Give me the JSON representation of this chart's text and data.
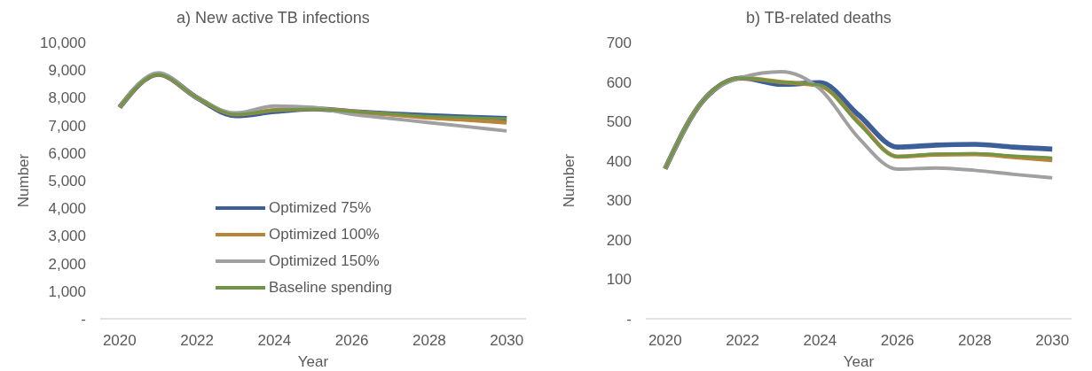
{
  "chart_data": [
    {
      "type": "line",
      "title": "a) New active TB infections",
      "xlabel": "Year",
      "ylabel": "Number",
      "x": [
        2020,
        2021,
        2022,
        2023,
        2024,
        2025,
        2026,
        2027,
        2028,
        2029,
        2030
      ],
      "xlim": [
        2019.5,
        2030.5
      ],
      "xticks": [
        2020,
        2022,
        2024,
        2026,
        2028,
        2030
      ],
      "ylim": [
        0,
        10000
      ],
      "yticks": [
        {
          "value": 0,
          "label": "-"
        },
        {
          "value": 1000,
          "label": "1,000"
        },
        {
          "value": 2000,
          "label": "2,000"
        },
        {
          "value": 3000,
          "label": "3,000"
        },
        {
          "value": 4000,
          "label": "4,000"
        },
        {
          "value": 5000,
          "label": "5,000"
        },
        {
          "value": 6000,
          "label": "6,000"
        },
        {
          "value": 7000,
          "label": "7,000"
        },
        {
          "value": 8000,
          "label": "8,000"
        },
        {
          "value": 9000,
          "label": "9,000"
        },
        {
          "value": 10000,
          "label": "10,000"
        }
      ],
      "grid": false,
      "legend": "bottom",
      "marker": "none",
      "line_style": "solid",
      "series": [
        {
          "name": "Optimized 75%",
          "color": "#3c5f9a",
          "values": [
            7650,
            8850,
            8000,
            7350,
            7500,
            7600,
            7500,
            7420,
            7350,
            7300,
            7250
          ]
        },
        {
          "name": "Optimized 100%",
          "color": "#b8843a",
          "values": [
            7650,
            8850,
            8000,
            7400,
            7550,
            7600,
            7500,
            7400,
            7280,
            7200,
            7100
          ]
        },
        {
          "name": "Optimized 150%",
          "color": "#a0a0a0",
          "values": [
            7650,
            8900,
            8000,
            7450,
            7700,
            7650,
            7400,
            7250,
            7100,
            6950,
            6800
          ]
        },
        {
          "name": "Baseline spending",
          "color": "#6f9646",
          "values": [
            7650,
            8850,
            8000,
            7400,
            7550,
            7600,
            7500,
            7420,
            7330,
            7280,
            7250
          ]
        }
      ]
    },
    {
      "type": "line",
      "title": "b) TB-related deaths",
      "xlabel": "Year",
      "ylabel": "Number",
      "x": [
        2020,
        2021,
        2022,
        2023,
        2024,
        2025,
        2026,
        2027,
        2028,
        2029,
        2030
      ],
      "xlim": [
        2019.5,
        2030.5
      ],
      "xticks": [
        2020,
        2022,
        2024,
        2026,
        2028,
        2030
      ],
      "ylim": [
        0,
        700
      ],
      "yticks": [
        {
          "value": 0,
          "label": "-"
        },
        100,
        200,
        300,
        400,
        500,
        600,
        700
      ],
      "grid": false,
      "marker": "none",
      "line_style": "solid",
      "series": [
        {
          "color": "#3c5f9a",
          "values": [
            380,
            555,
            610,
            594,
            598,
            516,
            435,
            440,
            442,
            435,
            430
          ]
        },
        {
          "color": "#b8843a",
          "values": [
            380,
            555,
            610,
            600,
            590,
            498,
            411,
            416,
            417,
            410,
            402
          ]
        },
        {
          "color": "#a0a0a0",
          "values": [
            380,
            555,
            612,
            626,
            582,
            458,
            379,
            382,
            376,
            366,
            357
          ]
        },
        {
          "color": "#6f9646",
          "values": [
            380,
            555,
            610,
            600,
            592,
            494,
            411,
            418,
            419,
            413,
            408
          ]
        }
      ]
    }
  ]
}
